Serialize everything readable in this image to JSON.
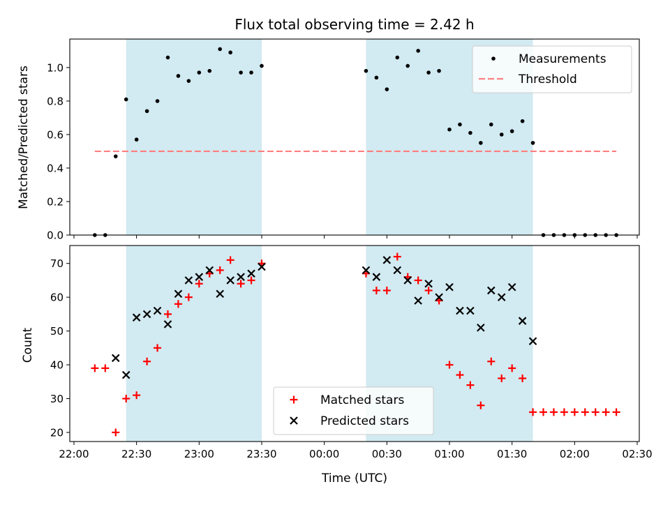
{
  "chart_data": {
    "type": "scatter",
    "title": "Flux total observing time = 2.42 h",
    "xlabel": "Time (UTC)",
    "x_ticks": [
      "22:00",
      "22:30",
      "23:00",
      "23:30",
      "00:00",
      "00:30",
      "01:00",
      "01:30",
      "02:00",
      "02:30"
    ],
    "x_tick_minutes": [
      0,
      30,
      60,
      90,
      120,
      150,
      180,
      210,
      240,
      270
    ],
    "xlim_minutes": [
      -2,
      271
    ],
    "shaded_intervals_minutes": [
      [
        25,
        90
      ],
      [
        140,
        220
      ]
    ],
    "shade_color": "#add8e6",
    "panels": [
      {
        "ylabel": "Matched/Predicted stars",
        "ylim": [
          0,
          1.17
        ],
        "y_ticks": [
          "0.0",
          "0.2",
          "0.4",
          "0.6",
          "0.8",
          "1.0"
        ],
        "y_tick_values": [
          0,
          0.2,
          0.4,
          0.6,
          0.8,
          1.0
        ],
        "legend": {
          "placement": "top-right",
          "entries": [
            "Measurements",
            "Threshold"
          ]
        },
        "series": [
          {
            "name": "Measurements",
            "marker": "dot",
            "color": "#000000",
            "x": [
              10,
              15,
              20,
              25,
              30,
              35,
              40,
              45,
              50,
              55,
              60,
              65,
              70,
              75,
              80,
              85,
              90,
              140,
              145,
              150,
              155,
              160,
              165,
              170,
              175,
              180,
              185,
              190,
              195,
              200,
              205,
              210,
              215,
              220,
              225,
              230,
              235,
              240,
              245,
              250,
              255,
              260
            ],
            "y": [
              0,
              0,
              0.47,
              0.81,
              0.57,
              0.74,
              0.8,
              1.06,
              0.95,
              0.92,
              0.97,
              0.98,
              1.11,
              1.09,
              0.97,
              0.97,
              1.01,
              0.98,
              0.94,
              0.87,
              1.06,
              1.01,
              1.1,
              0.97,
              0.98,
              0.63,
              0.66,
              0.61,
              0.55,
              0.66,
              0.6,
              0.62,
              0.68,
              0.55,
              0,
              0,
              0,
              0,
              0,
              0,
              0,
              0
            ]
          },
          {
            "name": "Threshold",
            "style": "dashed",
            "color": "#ff7f7f",
            "x": [
              10,
              260
            ],
            "y": [
              0.5,
              0.5
            ]
          }
        ]
      },
      {
        "ylabel": "Count",
        "ylim": [
          17.3,
          75.3
        ],
        "y_ticks": [
          "20",
          "30",
          "40",
          "50",
          "60",
          "70"
        ],
        "y_tick_values": [
          20,
          30,
          40,
          50,
          60,
          70
        ],
        "legend": {
          "placement": "lower-center",
          "entries": [
            "Matched stars",
            "Predicted stars"
          ]
        },
        "series": [
          {
            "name": "Matched stars",
            "marker": "plus",
            "color": "#ff0000",
            "x": [
              10,
              15,
              20,
              25,
              30,
              35,
              40,
              45,
              50,
              55,
              60,
              65,
              70,
              75,
              80,
              85,
              90,
              140,
              145,
              150,
              155,
              160,
              165,
              170,
              175,
              180,
              185,
              190,
              195,
              200,
              205,
              210,
              215,
              220,
              225,
              230,
              235,
              240,
              245,
              250,
              255,
              260
            ],
            "y": [
              39,
              39,
              20,
              30,
              31,
              41,
              45,
              55,
              58,
              60,
              64,
              67,
              68,
              71,
              64,
              65,
              70,
              67,
              62,
              62,
              72,
              66,
              65,
              62,
              59,
              40,
              37,
              34,
              28,
              41,
              36,
              39,
              36,
              26,
              26,
              26,
              26,
              26,
              26,
              26,
              26,
              26
            ]
          },
          {
            "name": "Predicted stars",
            "marker": "x",
            "color": "#000000",
            "x": [
              20,
              25,
              30,
              35,
              40,
              45,
              50,
              55,
              60,
              65,
              70,
              75,
              80,
              85,
              90,
              140,
              145,
              150,
              155,
              160,
              165,
              170,
              175,
              180,
              185,
              190,
              195,
              200,
              205,
              210,
              215,
              220
            ],
            "y": [
              42,
              37,
              54,
              55,
              56,
              52,
              61,
              65,
              66,
              68,
              61,
              65,
              66,
              67,
              69,
              68,
              66,
              71,
              68,
              65,
              59,
              64,
              60,
              63,
              56,
              56,
              51,
              62,
              60,
              63,
              53,
              47
            ]
          }
        ]
      }
    ]
  }
}
